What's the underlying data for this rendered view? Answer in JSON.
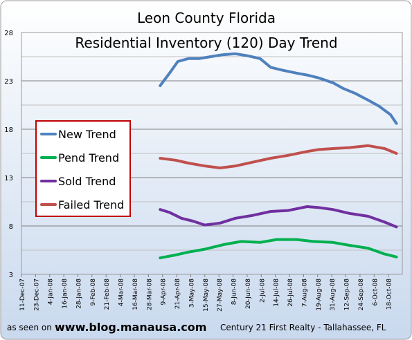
{
  "chart_data": {
    "type": "line",
    "title": "Leon County Florida",
    "subtitle": "Residential Inventory (120) Day Trend",
    "y_ticks": [
      3,
      8,
      13,
      18,
      23,
      28
    ],
    "ylim": [
      3,
      28
    ],
    "x_ticks": [
      "11-Dec-07",
      "23-Dec-07",
      "4-Jan-08",
      "16-Jan-08",
      "28-Jan-08",
      "9-Feb-08",
      "21-Feb-08",
      "4-Mar-08",
      "16-Mar-08",
      "28-Mar-08",
      "9-Apr-08",
      "21-Apr-08",
      "3-May-08",
      "15-May-08",
      "27-May-08",
      "8-Jun-08",
      "20-Jun-08",
      "2-Jul-08",
      "14-Jul-08",
      "26-Jul-08",
      "7-Aug-08",
      "19-Aug-08",
      "31-Aug-08",
      "12-Sep-08",
      "24-Sep-08",
      "6-Oct-08",
      "18-Oct-08"
    ],
    "grid": true,
    "legend_position": "left",
    "series": [
      {
        "name": "New Trend",
        "color": "#4f81bd",
        "x": [
          "2008-04-07",
          "2008-04-15",
          "2008-04-22",
          "2008-05-01",
          "2008-05-10",
          "2008-05-20",
          "2008-05-30",
          "2008-06-10",
          "2008-06-20",
          "2008-07-01",
          "2008-07-10",
          "2008-07-20",
          "2008-08-01",
          "2008-08-10",
          "2008-08-20",
          "2008-09-01",
          "2008-09-10",
          "2008-09-20",
          "2008-10-01",
          "2008-10-10",
          "2008-10-20",
          "2008-10-25"
        ],
        "values": [
          22.5,
          23.8,
          25.0,
          25.3,
          25.3,
          25.5,
          25.7,
          25.8,
          25.6,
          25.3,
          24.4,
          24.1,
          23.8,
          23.6,
          23.3,
          22.8,
          22.2,
          21.7,
          21.0,
          20.4,
          19.5,
          18.6
        ]
      },
      {
        "name": "Pend Trend",
        "color": "#00b050",
        "x": [
          "2008-04-07",
          "2008-04-20",
          "2008-05-01",
          "2008-05-15",
          "2008-06-01",
          "2008-06-15",
          "2008-07-01",
          "2008-07-15",
          "2008-08-01",
          "2008-08-15",
          "2008-09-01",
          "2008-09-15",
          "2008-10-01",
          "2008-10-15",
          "2008-10-25"
        ],
        "values": [
          4.7,
          5.0,
          5.3,
          5.6,
          6.1,
          6.4,
          6.3,
          6.6,
          6.6,
          6.4,
          6.3,
          6.0,
          5.7,
          5.1,
          4.8
        ]
      },
      {
        "name": "Sold Trend",
        "color": "#7030a0",
        "x": [
          "2008-04-07",
          "2008-04-15",
          "2008-04-25",
          "2008-05-05",
          "2008-05-15",
          "2008-05-28",
          "2008-06-10",
          "2008-06-25",
          "2008-07-10",
          "2008-07-25",
          "2008-08-10",
          "2008-08-20",
          "2008-09-01",
          "2008-09-15",
          "2008-10-01",
          "2008-10-15",
          "2008-10-25"
        ],
        "values": [
          9.7,
          9.4,
          8.8,
          8.5,
          8.1,
          8.3,
          8.8,
          9.1,
          9.5,
          9.6,
          10.0,
          9.9,
          9.7,
          9.3,
          9.0,
          8.4,
          7.9
        ]
      },
      {
        "name": "Failed Trend",
        "color": "#c0504d",
        "x": [
          "2008-04-07",
          "2008-04-20",
          "2008-05-01",
          "2008-05-15",
          "2008-05-28",
          "2008-06-10",
          "2008-06-25",
          "2008-07-10",
          "2008-07-25",
          "2008-08-10",
          "2008-08-20",
          "2008-09-01",
          "2008-09-15",
          "2008-10-01",
          "2008-10-15",
          "2008-10-25"
        ],
        "values": [
          15.0,
          14.8,
          14.5,
          14.2,
          14.0,
          14.2,
          14.6,
          15.0,
          15.3,
          15.7,
          15.9,
          16.0,
          16.1,
          16.3,
          16.0,
          15.5
        ]
      }
    ]
  },
  "footer": {
    "prefix": "as seen on",
    "website": "www.blog.manausa.com",
    "company": "Century 21 First Realty - Tallahassee, FL"
  }
}
